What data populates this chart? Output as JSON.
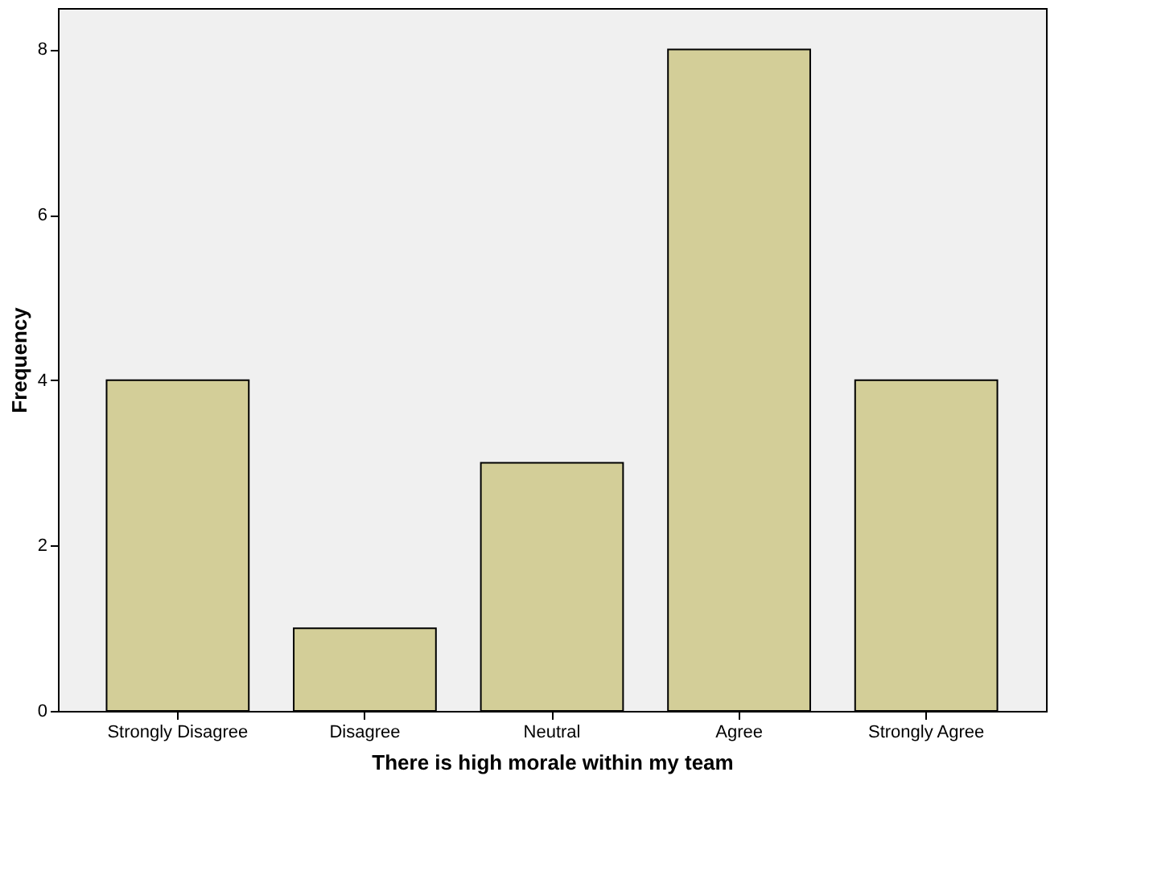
{
  "chart_data": {
    "type": "bar",
    "xlabel": "There is high morale within my team",
    "ylabel": "Frequency",
    "categories": [
      "Strongly Disagree",
      "Disagree",
      "Neutral",
      "Agree",
      "Strongly Agree"
    ],
    "values": [
      4,
      1,
      3,
      8,
      4
    ],
    "color": "#d3ce98",
    "ylim": [
      0,
      8.5
    ],
    "yticks": [
      0,
      2,
      4,
      6,
      8
    ]
  }
}
